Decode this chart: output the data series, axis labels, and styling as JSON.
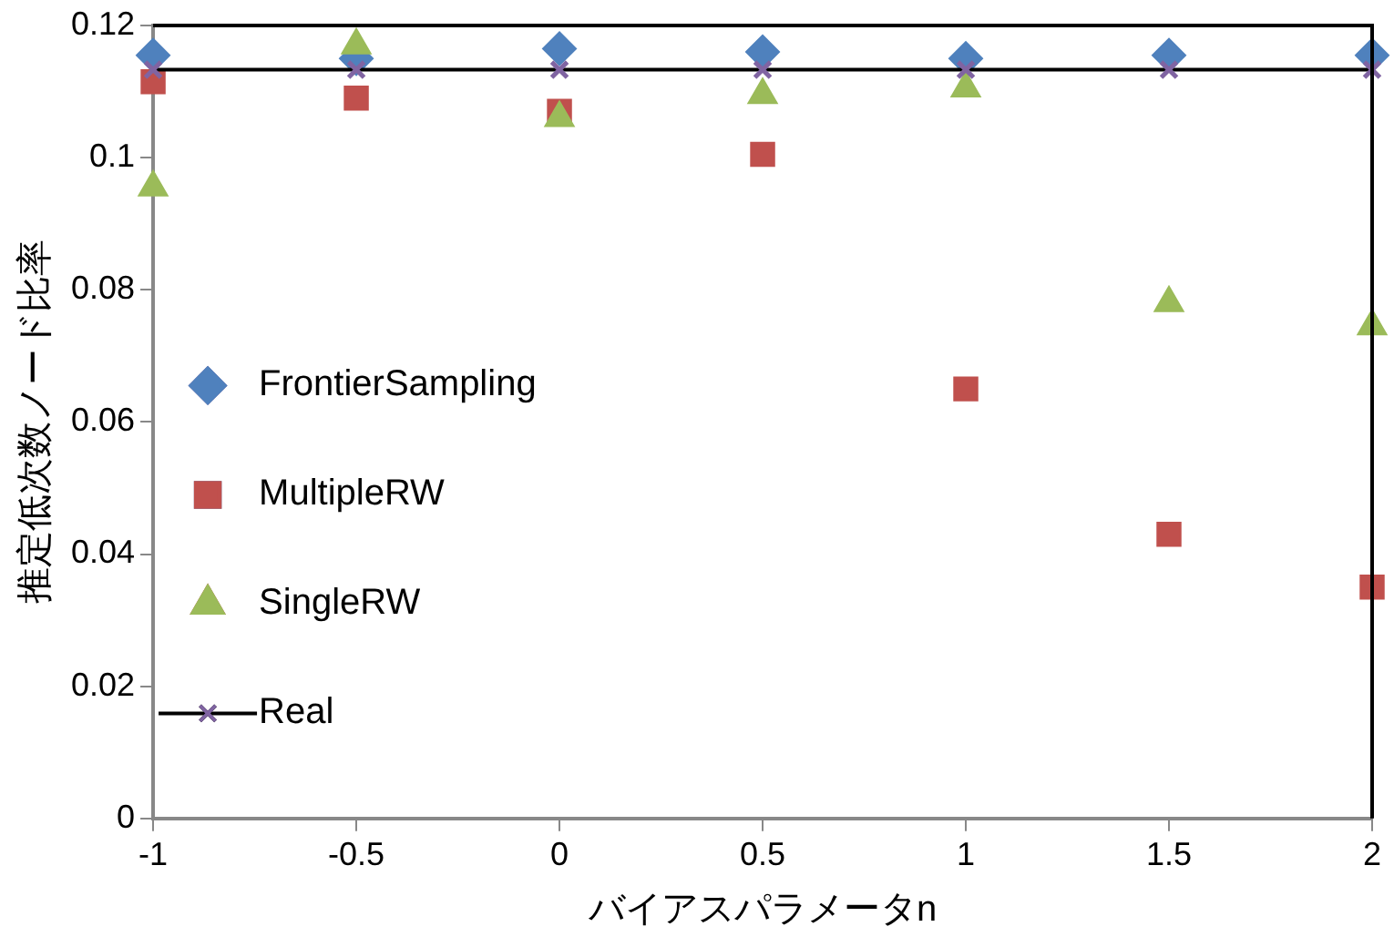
{
  "chart_data": {
    "type": "scatter",
    "xlabel": "バイアスパラメータn",
    "ylabel": "推定低次数ノード比率",
    "xlim": [
      -1,
      2
    ],
    "xticks": [
      -1,
      -0.5,
      0,
      0.5,
      1,
      1.5,
      2
    ],
    "ylim": [
      0,
      0.12
    ],
    "yticks": [
      0,
      0.02,
      0.04,
      0.06,
      0.08,
      0.1,
      0.12
    ],
    "grid": false,
    "legend": "left",
    "x": [
      -1,
      -0.5,
      0,
      0.5,
      1,
      1.5,
      2
    ],
    "series": [
      {
        "name": "FrontierSampling",
        "color": "#4f81bd",
        "marker": "diamond",
        "values": [
          0.1155,
          0.115,
          0.1165,
          0.116,
          0.115,
          0.1155,
          0.1155
        ]
      },
      {
        "name": "MultipleRW",
        "color": "#c0504d",
        "marker": "square",
        "values": [
          0.1115,
          0.109,
          0.107,
          0.1005,
          0.065,
          0.043,
          0.035
        ]
      },
      {
        "name": "SingleRW",
        "color": "#9bbb59",
        "marker": "triangle",
        "values": [
          0.0955,
          0.117,
          0.106,
          0.1095,
          0.1105,
          0.078,
          0.0745
        ]
      },
      {
        "name": "Real",
        "type": "line",
        "color": "#8064a2",
        "marker": "cross",
        "values": [
          0.1133,
          0.1133,
          0.1133,
          0.1133,
          0.1133,
          0.1133,
          0.1133
        ]
      }
    ]
  }
}
